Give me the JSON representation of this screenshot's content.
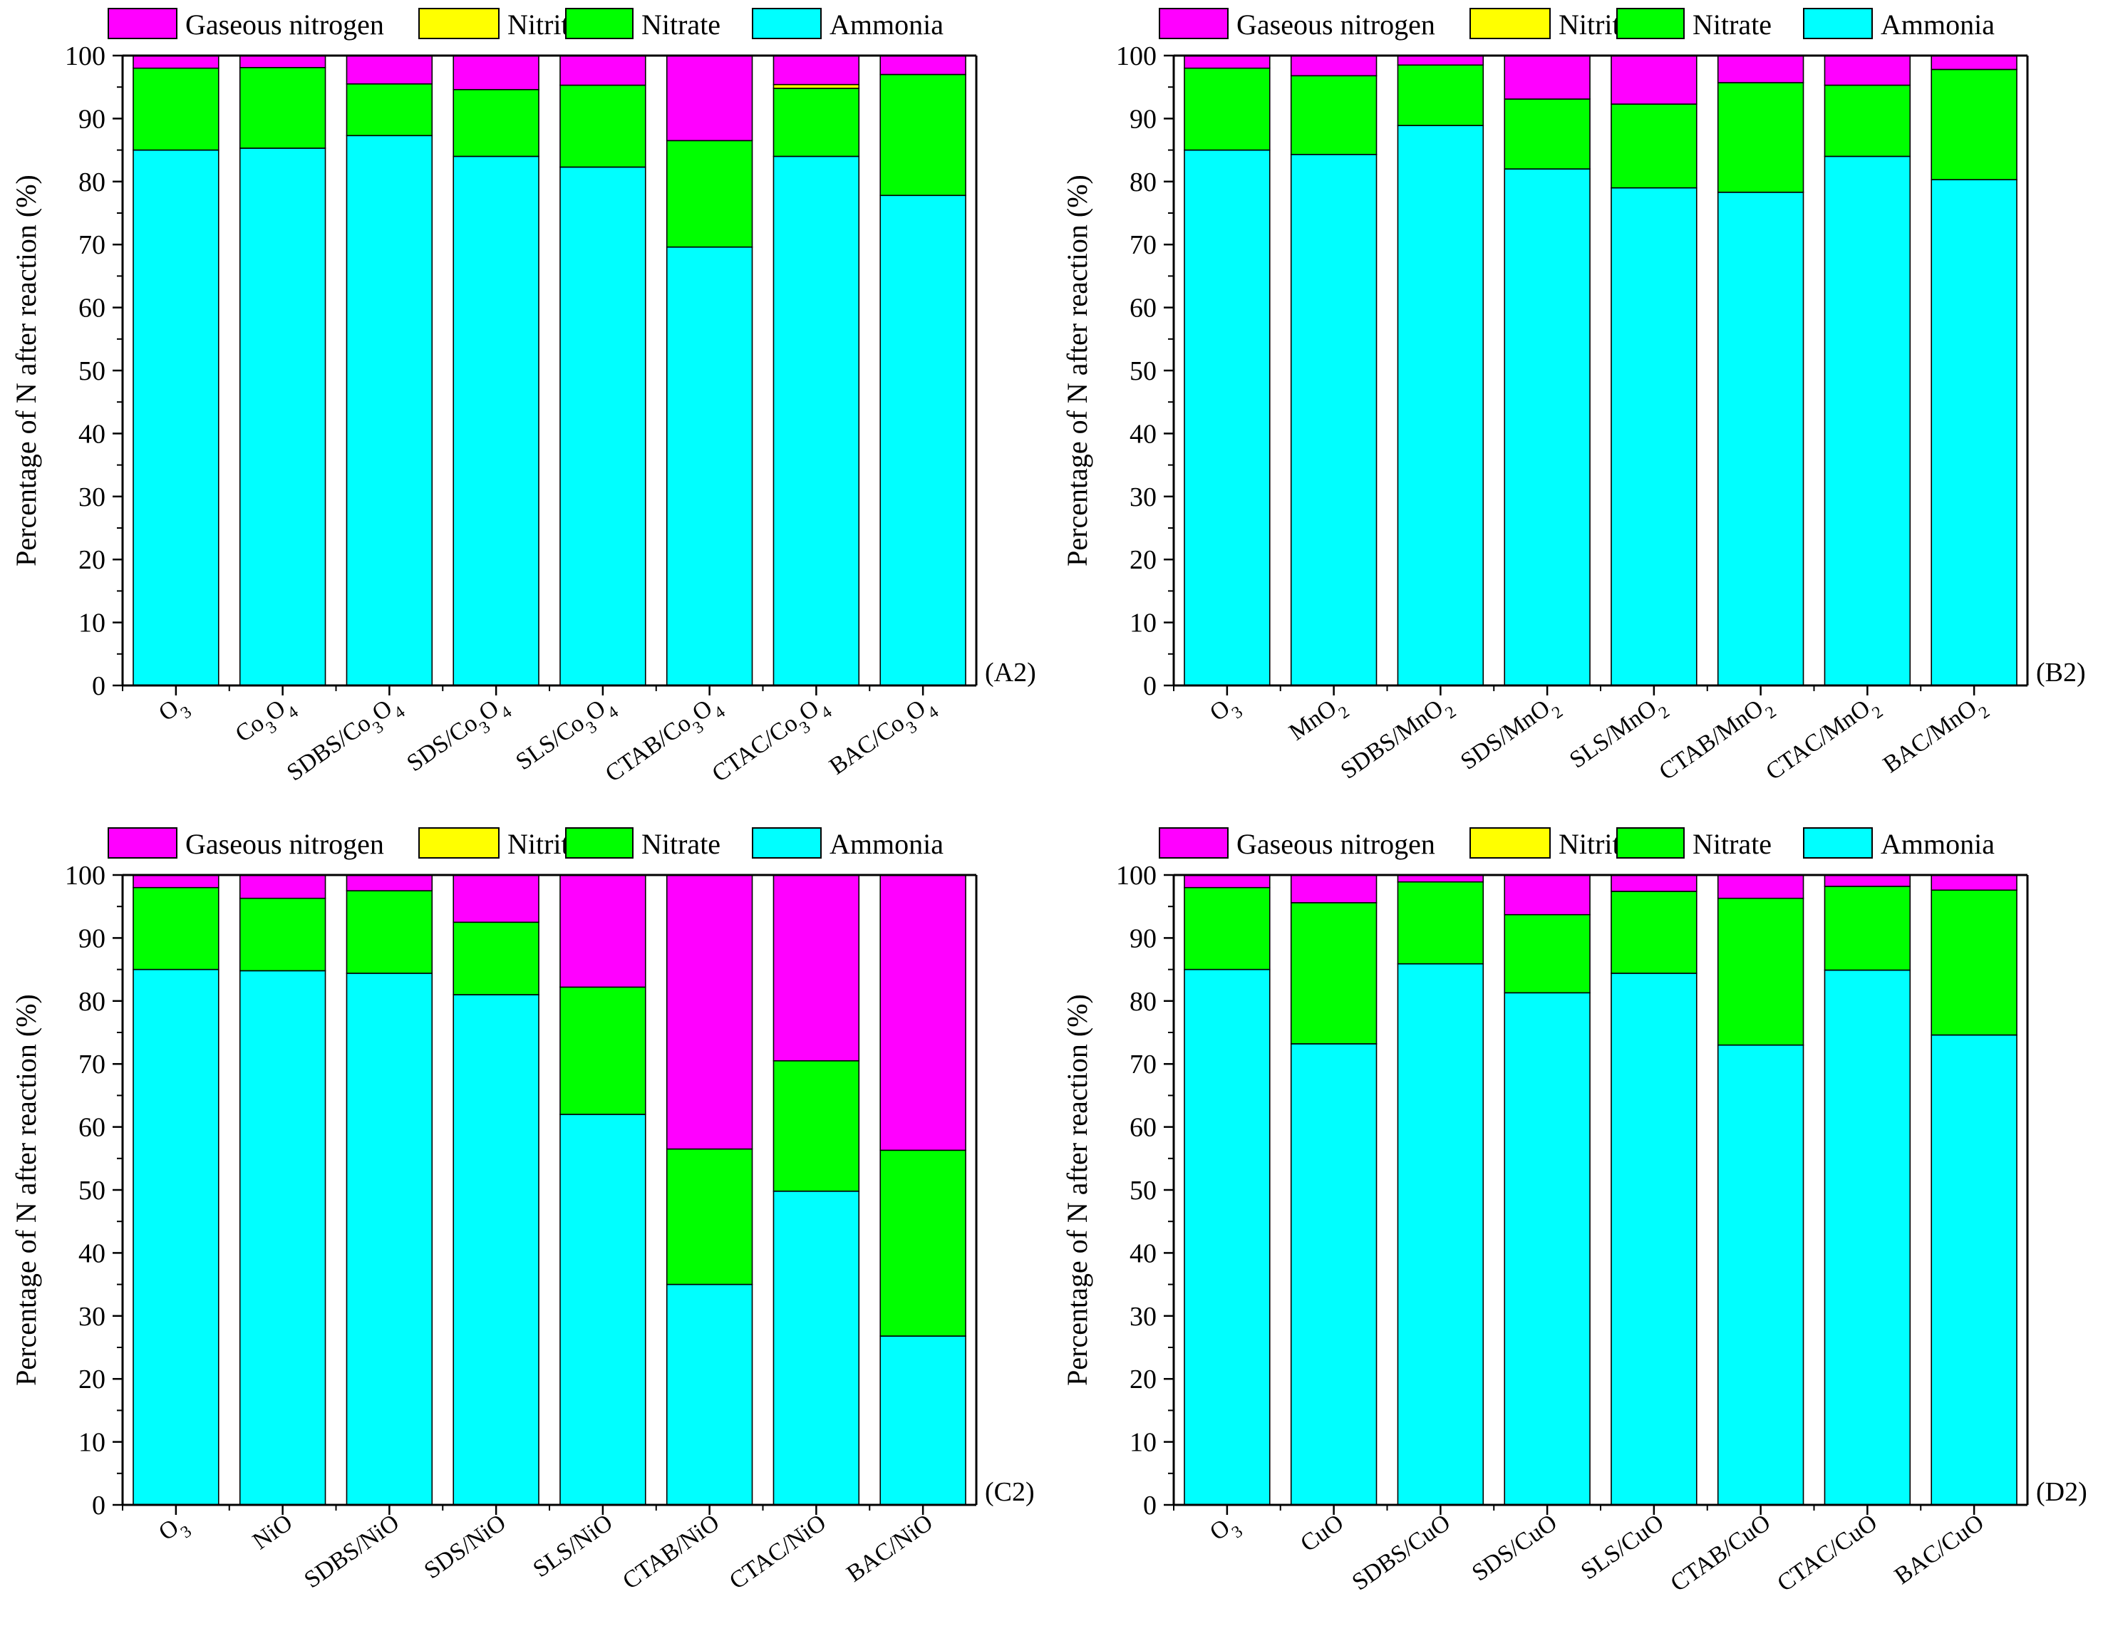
{
  "series_names": [
    "Gaseous nitrogen",
    "Nitrite",
    "Nitrate",
    "Ammonia"
  ],
  "colors": {
    "gaseous": "#FF00FF",
    "nitrite": "#FFFF00",
    "nitrate": "#00FF00",
    "ammonia": "#00FFFF",
    "axis": "#000000"
  },
  "chart_data": [
    {
      "type": "bar",
      "stacked": true,
      "panel_label": "(A2)",
      "ylabel": "Percentage of N after reaction (%)",
      "ylim": [
        0,
        100
      ],
      "yticks": [
        0,
        10,
        20,
        30,
        40,
        50,
        60,
        70,
        80,
        90,
        100
      ],
      "legend": [
        {
          "name": "Gaseous nitrogen",
          "color": "#FF00FF"
        },
        {
          "name": "Nitrite",
          "color": "#FFFF00"
        },
        {
          "name": "Nitrate",
          "color": "#00FF00"
        },
        {
          "name": "Ammonia",
          "color": "#00FFFF"
        }
      ],
      "categories": [
        {
          "parts": [
            [
              "O",
              false
            ],
            [
              "3",
              true
            ]
          ]
        },
        {
          "parts": [
            [
              "Co",
              false
            ],
            [
              "3",
              true
            ],
            [
              "O",
              false
            ],
            [
              "4",
              true
            ]
          ]
        },
        {
          "parts": [
            [
              "SDBS/Co",
              false
            ],
            [
              "3",
              true
            ],
            [
              "O",
              false
            ],
            [
              "4",
              true
            ]
          ]
        },
        {
          "parts": [
            [
              "SDS/Co",
              false
            ],
            [
              "3",
              true
            ],
            [
              "O",
              false
            ],
            [
              "4",
              true
            ]
          ]
        },
        {
          "parts": [
            [
              "SLS/Co",
              false
            ],
            [
              "3",
              true
            ],
            [
              "O",
              false
            ],
            [
              "4",
              true
            ]
          ]
        },
        {
          "parts": [
            [
              "CTAB/Co",
              false
            ],
            [
              "3",
              true
            ],
            [
              "O",
              false
            ],
            [
              "4",
              true
            ]
          ]
        },
        {
          "parts": [
            [
              "CTAC/Co",
              false
            ],
            [
              "3",
              true
            ],
            [
              "O",
              false
            ],
            [
              "4",
              true
            ]
          ]
        },
        {
          "parts": [
            [
              "BAC/Co",
              false
            ],
            [
              "3",
              true
            ],
            [
              "O",
              false
            ],
            [
              "4",
              true
            ]
          ]
        }
      ],
      "series": [
        {
          "name": "Ammonia",
          "values": [
            85.0,
            85.3,
            87.3,
            84.0,
            82.3,
            69.6,
            84.0,
            77.8
          ]
        },
        {
          "name": "Nitrate",
          "values": [
            13.0,
            12.8,
            8.2,
            10.6,
            13.0,
            16.9,
            10.8,
            19.2
          ]
        },
        {
          "name": "Nitrite",
          "values": [
            0.0,
            0.0,
            0.0,
            0.0,
            0.0,
            0.0,
            0.6,
            0.0
          ]
        },
        {
          "name": "Gaseous nitrogen",
          "values": [
            2.0,
            1.9,
            4.5,
            5.4,
            4.7,
            13.5,
            4.6,
            3.0
          ]
        }
      ]
    },
    {
      "type": "bar",
      "stacked": true,
      "panel_label": "(B2)",
      "ylabel": "Percentage of N after reaction (%)",
      "ylim": [
        0,
        100
      ],
      "yticks": [
        0,
        10,
        20,
        30,
        40,
        50,
        60,
        70,
        80,
        90,
        100
      ],
      "legend": [
        {
          "name": "Gaseous nitrogen",
          "color": "#FF00FF"
        },
        {
          "name": "Nitrite",
          "color": "#FFFF00"
        },
        {
          "name": "Nitrate",
          "color": "#00FF00"
        },
        {
          "name": "Ammonia",
          "color": "#00FFFF"
        }
      ],
      "categories": [
        {
          "parts": [
            [
              "O",
              false
            ],
            [
              "3",
              true
            ]
          ]
        },
        {
          "parts": [
            [
              "MnO",
              false
            ],
            [
              "2",
              true
            ]
          ]
        },
        {
          "parts": [
            [
              "SDBS/MnO",
              false
            ],
            [
              "2",
              true
            ]
          ]
        },
        {
          "parts": [
            [
              "SDS/MnO",
              false
            ],
            [
              "2",
              true
            ]
          ]
        },
        {
          "parts": [
            [
              "SLS/MnO",
              false
            ],
            [
              "2",
              true
            ]
          ]
        },
        {
          "parts": [
            [
              "CTAB/MnO",
              false
            ],
            [
              "2",
              true
            ]
          ]
        },
        {
          "parts": [
            [
              "CTAC/MnO",
              false
            ],
            [
              "2",
              true
            ]
          ]
        },
        {
          "parts": [
            [
              "BAC/MnO",
              false
            ],
            [
              "2",
              true
            ]
          ]
        }
      ],
      "series": [
        {
          "name": "Ammonia",
          "values": [
            85.0,
            84.3,
            88.9,
            82.0,
            79.0,
            78.3,
            84.0,
            80.3
          ]
        },
        {
          "name": "Nitrate",
          "values": [
            13.0,
            12.5,
            9.6,
            11.1,
            13.3,
            17.4,
            11.3,
            17.5
          ]
        },
        {
          "name": "Nitrite",
          "values": [
            0.0,
            0.0,
            0.0,
            0.0,
            0.0,
            0.0,
            0.0,
            0.0
          ]
        },
        {
          "name": "Gaseous nitrogen",
          "values": [
            2.0,
            3.2,
            1.5,
            6.9,
            7.7,
            4.3,
            4.7,
            2.2
          ]
        }
      ]
    },
    {
      "type": "bar",
      "stacked": true,
      "panel_label": "(C2)",
      "ylabel": "Percentage of N after reaction (%)",
      "ylim": [
        0,
        100
      ],
      "yticks": [
        0,
        10,
        20,
        30,
        40,
        50,
        60,
        70,
        80,
        90,
        100
      ],
      "legend": [
        {
          "name": "Gaseous nitrogen",
          "color": "#FF00FF"
        },
        {
          "name": "Nitrite",
          "color": "#FFFF00"
        },
        {
          "name": "Nitrate",
          "color": "#00FF00"
        },
        {
          "name": "Ammonia",
          "color": "#00FFFF"
        }
      ],
      "categories": [
        {
          "parts": [
            [
              "O",
              false
            ],
            [
              "3",
              true
            ]
          ]
        },
        {
          "parts": [
            [
              "NiO",
              false
            ]
          ]
        },
        {
          "parts": [
            [
              "SDBS/NiO",
              false
            ]
          ]
        },
        {
          "parts": [
            [
              "SDS/NiO",
              false
            ]
          ]
        },
        {
          "parts": [
            [
              "SLS/NiO",
              false
            ]
          ]
        },
        {
          "parts": [
            [
              "CTAB/NiO",
              false
            ]
          ]
        },
        {
          "parts": [
            [
              "CTAC/NiO",
              false
            ]
          ]
        },
        {
          "parts": [
            [
              "BAC/NiO",
              false
            ]
          ]
        }
      ],
      "series": [
        {
          "name": "Ammonia",
          "values": [
            85.0,
            84.8,
            84.4,
            81.0,
            62.0,
            35.0,
            49.8,
            26.8
          ]
        },
        {
          "name": "Nitrate",
          "values": [
            13.0,
            11.5,
            13.1,
            11.5,
            20.2,
            21.5,
            20.7,
            29.5
          ]
        },
        {
          "name": "Nitrite",
          "values": [
            0.0,
            0.0,
            0.0,
            0.0,
            0.0,
            0.0,
            0.0,
            0.0
          ]
        },
        {
          "name": "Gaseous nitrogen",
          "values": [
            2.0,
            3.7,
            2.5,
            7.5,
            17.8,
            43.5,
            29.5,
            43.7
          ]
        }
      ]
    },
    {
      "type": "bar",
      "stacked": true,
      "panel_label": "(D2)",
      "ylabel": "Percentage of N after reaction (%)",
      "ylim": [
        0,
        100
      ],
      "yticks": [
        0,
        10,
        20,
        30,
        40,
        50,
        60,
        70,
        80,
        90,
        100
      ],
      "legend": [
        {
          "name": "Gaseous nitrogen",
          "color": "#FF00FF"
        },
        {
          "name": "Nitrite",
          "color": "#FFFF00"
        },
        {
          "name": "Nitrate",
          "color": "#00FF00"
        },
        {
          "name": "Ammonia",
          "color": "#00FFFF"
        }
      ],
      "categories": [
        {
          "parts": [
            [
              "O",
              false
            ],
            [
              "3",
              true
            ]
          ]
        },
        {
          "parts": [
            [
              "CuO",
              false
            ]
          ]
        },
        {
          "parts": [
            [
              "SDBS/CuO",
              false
            ]
          ]
        },
        {
          "parts": [
            [
              "SDS/CuO",
              false
            ]
          ]
        },
        {
          "parts": [
            [
              "SLS/CuO",
              false
            ]
          ]
        },
        {
          "parts": [
            [
              "CTAB/CuO",
              false
            ]
          ]
        },
        {
          "parts": [
            [
              "CTAC/CuO",
              false
            ]
          ]
        },
        {
          "parts": [
            [
              "BAC/CuO",
              false
            ]
          ]
        }
      ],
      "series": [
        {
          "name": "Ammonia",
          "values": [
            85.0,
            73.2,
            85.9,
            81.3,
            84.4,
            73.0,
            84.9,
            74.6
          ]
        },
        {
          "name": "Nitrate",
          "values": [
            13.0,
            22.4,
            13.0,
            12.4,
            13.0,
            23.3,
            13.3,
            23.0
          ]
        },
        {
          "name": "Nitrite",
          "values": [
            0.0,
            0.0,
            0.0,
            0.0,
            0.0,
            0.0,
            0.0,
            0.0
          ]
        },
        {
          "name": "Gaseous nitrogen",
          "values": [
            2.0,
            4.4,
            1.1,
            6.3,
            2.6,
            3.7,
            1.8,
            2.4
          ]
        }
      ]
    }
  ]
}
